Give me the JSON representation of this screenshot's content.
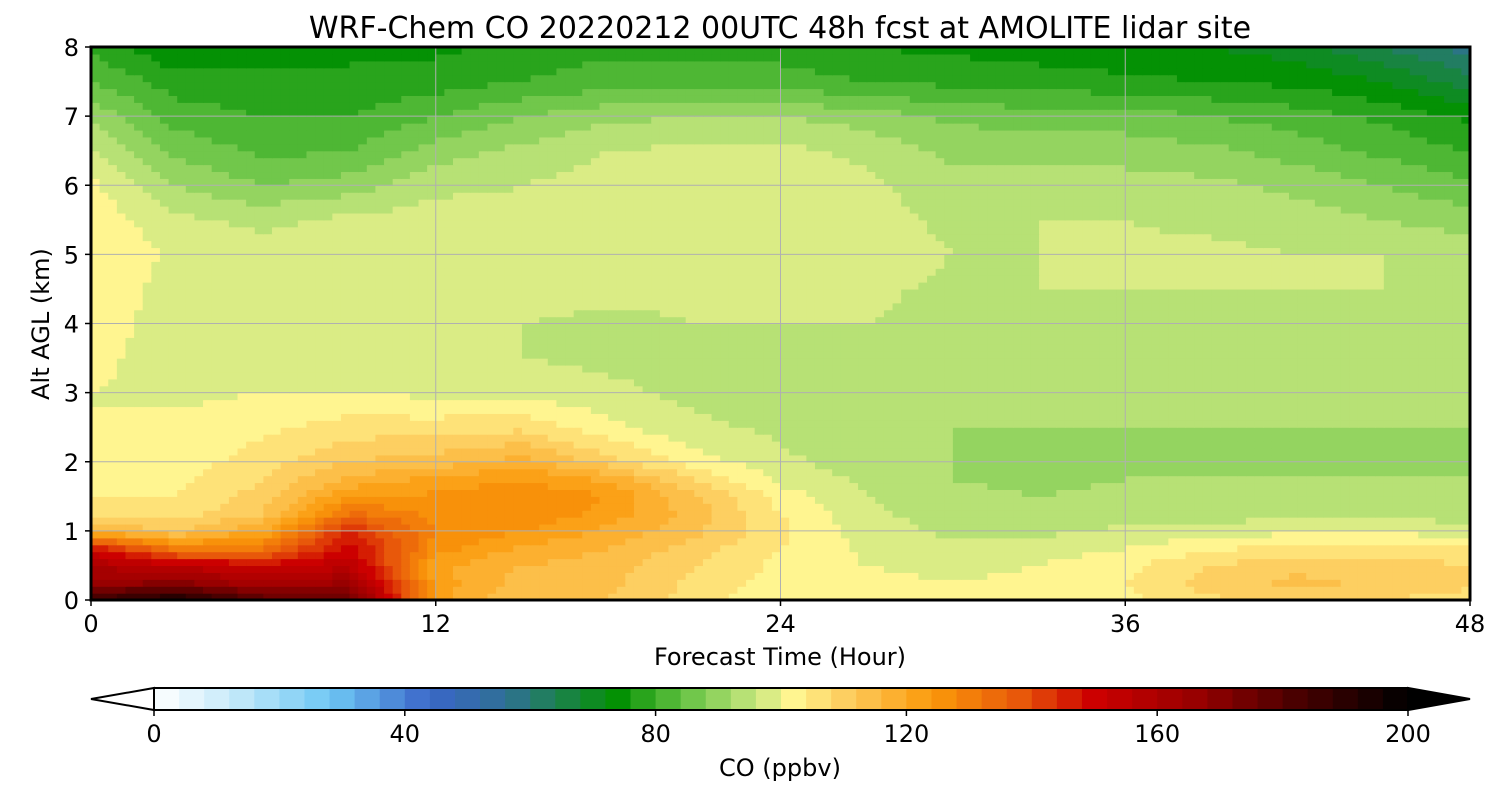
{
  "chart_data": {
    "type": "heatmap",
    "title": "WRF-Chem CO  20220212 00UTC 48h fcst at AMOLITE lidar site",
    "xlabel": "Forecast Time (Hour)",
    "ylabel": "Alt AGL (km)",
    "xlim": [
      0,
      48
    ],
    "ylim": [
      0,
      8
    ],
    "x_ticks": [
      "0",
      "12",
      "24",
      "36",
      "48"
    ],
    "y_ticks": [
      "0",
      "1",
      "2",
      "3",
      "4",
      "5",
      "6",
      "7",
      "8"
    ],
    "grid": true,
    "x": [
      0,
      3,
      6,
      9,
      12,
      15,
      18,
      21,
      24,
      27,
      30,
      33,
      36,
      39,
      42,
      45,
      48
    ],
    "y": [
      0,
      0.25,
      0.5,
      0.75,
      1,
      1.25,
      1.5,
      1.75,
      2,
      2.5,
      3,
      3.5,
      4,
      4.5,
      5,
      5.5,
      6,
      6.5,
      7,
      7.5,
      8
    ],
    "z": [
      [
        185,
        195,
        180,
        175,
        122,
        112,
        112,
        106,
        101,
        101,
        100,
        101,
        103,
        107,
        110,
        108,
        106
      ],
      [
        165,
        170,
        160,
        165,
        122,
        114,
        113,
        107,
        102,
        101,
        100,
        101,
        104,
        110,
        113,
        111,
        109
      ],
      [
        160,
        155,
        150,
        155,
        121,
        116,
        114,
        108,
        103,
        100,
        99,
        100,
        103,
        108,
        111,
        110,
        108
      ],
      [
        148,
        130,
        132,
        150,
        126,
        119,
        116,
        110,
        104,
        99,
        97,
        98,
        100,
        103,
        106,
        106,
        105
      ],
      [
        116,
        112,
        120,
        145,
        128,
        124,
        119,
        113,
        105,
        98,
        95,
        95,
        97,
        98,
        99,
        99,
        98
      ],
      [
        107,
        106,
        112,
        133,
        127,
        128,
        122,
        114,
        104,
        97,
        94,
        93,
        94,
        94,
        95,
        95,
        94
      ],
      [
        104,
        104,
        110,
        124,
        125,
        128,
        124,
        113,
        102,
        96,
        93,
        92,
        93,
        93,
        94,
        93,
        93
      ],
      [
        102,
        103,
        108,
        117,
        121,
        124,
        119,
        108,
        99,
        95,
        92,
        91,
        92,
        92,
        92,
        92,
        92
      ],
      [
        101,
        102,
        106,
        112,
        114,
        118,
        110,
        102,
        97,
        94,
        92,
        91,
        91,
        91,
        92,
        91,
        91
      ],
      [
        100,
        101,
        103,
        106,
        106,
        107,
        101,
        97,
        95,
        93,
        92,
        92,
        92,
        92,
        92,
        92,
        92
      ],
      [
        100,
        99,
        100,
        100,
        99,
        99,
        97,
        95,
        94,
        93,
        92,
        93,
        93,
        93,
        93,
        93,
        93
      ],
      [
        101,
        98,
        98,
        97,
        97,
        96,
        95,
        95,
        94,
        94,
        93,
        94,
        94,
        94,
        94,
        94,
        94
      ],
      [
        102,
        98,
        97,
        97,
        97,
        96,
        95,
        96,
        96,
        96,
        94,
        95,
        95,
        95,
        95,
        95,
        95
      ],
      [
        103,
        98,
        98,
        98,
        98,
        98,
        97,
        97,
        98,
        97,
        95,
        96,
        96,
        96,
        96,
        96,
        96
      ],
      [
        104,
        99,
        98,
        99,
        98,
        98,
        98,
        98,
        99,
        98,
        96,
        96,
        97,
        97,
        96,
        96,
        95
      ],
      [
        103,
        97,
        95,
        97,
        98,
        97,
        98,
        98,
        99,
        98,
        95,
        96,
        96,
        95,
        94,
        92,
        90
      ],
      [
        101,
        92,
        88,
        90,
        95,
        96,
        98,
        98,
        98,
        97,
        93,
        94,
        94,
        93,
        91,
        88,
        85
      ],
      [
        97,
        87,
        83,
        84,
        90,
        93,
        96,
        97,
        97,
        95,
        91,
        91,
        90,
        89,
        86,
        83,
        80
      ],
      [
        91,
        82,
        80,
        80,
        84,
        88,
        91,
        92,
        92,
        90,
        87,
        86,
        86,
        84,
        82,
        79,
        75
      ],
      [
        84,
        78,
        77,
        77,
        78,
        80,
        82,
        82,
        82,
        80,
        79,
        78,
        77,
        76,
        75,
        72,
        66
      ],
      [
        79,
        72,
        74,
        75,
        75,
        77,
        79,
        78,
        78,
        76,
        75,
        74,
        73,
        72,
        70,
        64,
        58
      ]
    ],
    "colorbar": {
      "label": "CO  (ppbv)",
      "min": 0,
      "max": 200,
      "step": 4,
      "ticks": [
        "0",
        "40",
        "80",
        "120",
        "160",
        "200"
      ],
      "extend": "both",
      "colormap": [
        [
          0,
          "#ffffff"
        ],
        [
          12,
          "#c9ebfa"
        ],
        [
          28,
          "#6fc8f4"
        ],
        [
          44,
          "#3a66c8"
        ],
        [
          56,
          "#2f6f96"
        ],
        [
          64,
          "#1d8150"
        ],
        [
          74,
          "#049104"
        ],
        [
          84,
          "#60c040"
        ],
        [
          96,
          "#c8e880"
        ],
        [
          102,
          "#fff590"
        ],
        [
          112,
          "#fcc655"
        ],
        [
          124,
          "#fb9a0a"
        ],
        [
          138,
          "#e8580a"
        ],
        [
          150,
          "#cc0000"
        ],
        [
          166,
          "#980000"
        ],
        [
          182,
          "#4a0000"
        ],
        [
          200,
          "#000000"
        ]
      ]
    }
  }
}
